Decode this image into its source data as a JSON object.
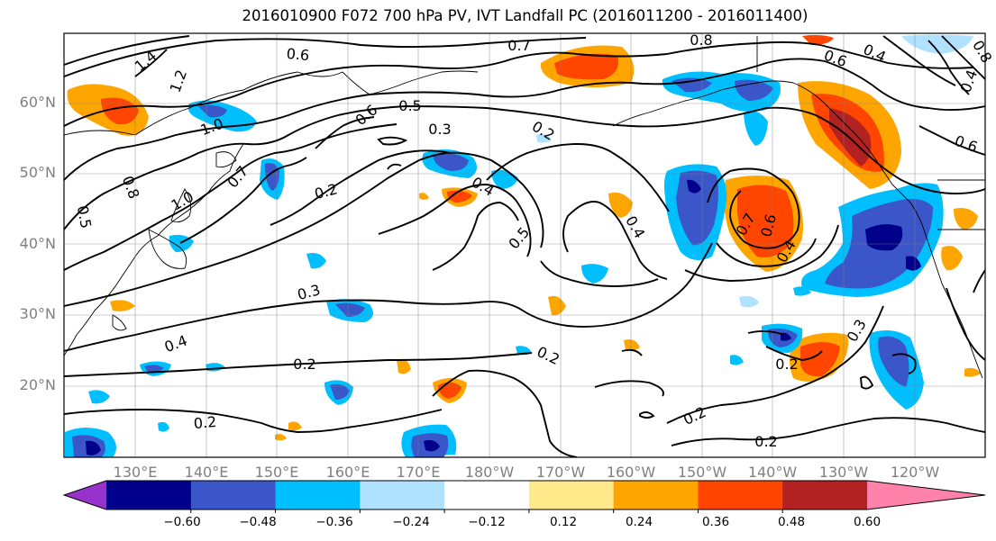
{
  "title": "2016010900 F072 700 hPa PV, IVT Landfall PC (2016011200 - 2016011400)",
  "lat_labels": [
    "60°N",
    "50°N",
    "40°N",
    "30°N",
    "20°N"
  ],
  "lon_labels": [
    "130°E",
    "140°E",
    "150°E",
    "160°E",
    "170°E",
    "180°W",
    "170°W",
    "160°W",
    "150°W",
    "140°W",
    "130°W",
    "120°W"
  ],
  "colorbar": {
    "colors": [
      "#9932cc",
      "#00008b",
      "#3a56c8",
      "#00bfff",
      "#b0e2ff",
      "#ffffff",
      "#ffe98a",
      "#ffa500",
      "#ff4500",
      "#b22222",
      "#ff82ab"
    ],
    "tick_labels": [
      "−0.60",
      "−0.48",
      "−0.36",
      "−0.24",
      "−0.12",
      "0.12",
      "0.24",
      "0.36",
      "0.48",
      "0.60"
    ]
  },
  "contour_labels": [
    "0.6",
    "1.4",
    "1.2",
    "0.7",
    "0.8",
    "0.6",
    "0.4",
    "0.8",
    "0.4",
    "1.0",
    "0.6",
    "0.5",
    "0.3",
    "0.2",
    "0.2",
    "0.4",
    "0.5",
    "0.4",
    "0.7",
    "0.6",
    "0.4",
    "0.8",
    "0.5",
    "1.0",
    "0.7",
    "0.3",
    "0.6",
    "0.4",
    "0.2",
    "0.2",
    "0.2",
    "0.3",
    "0.2",
    "0.2",
    "0.2"
  ]
}
